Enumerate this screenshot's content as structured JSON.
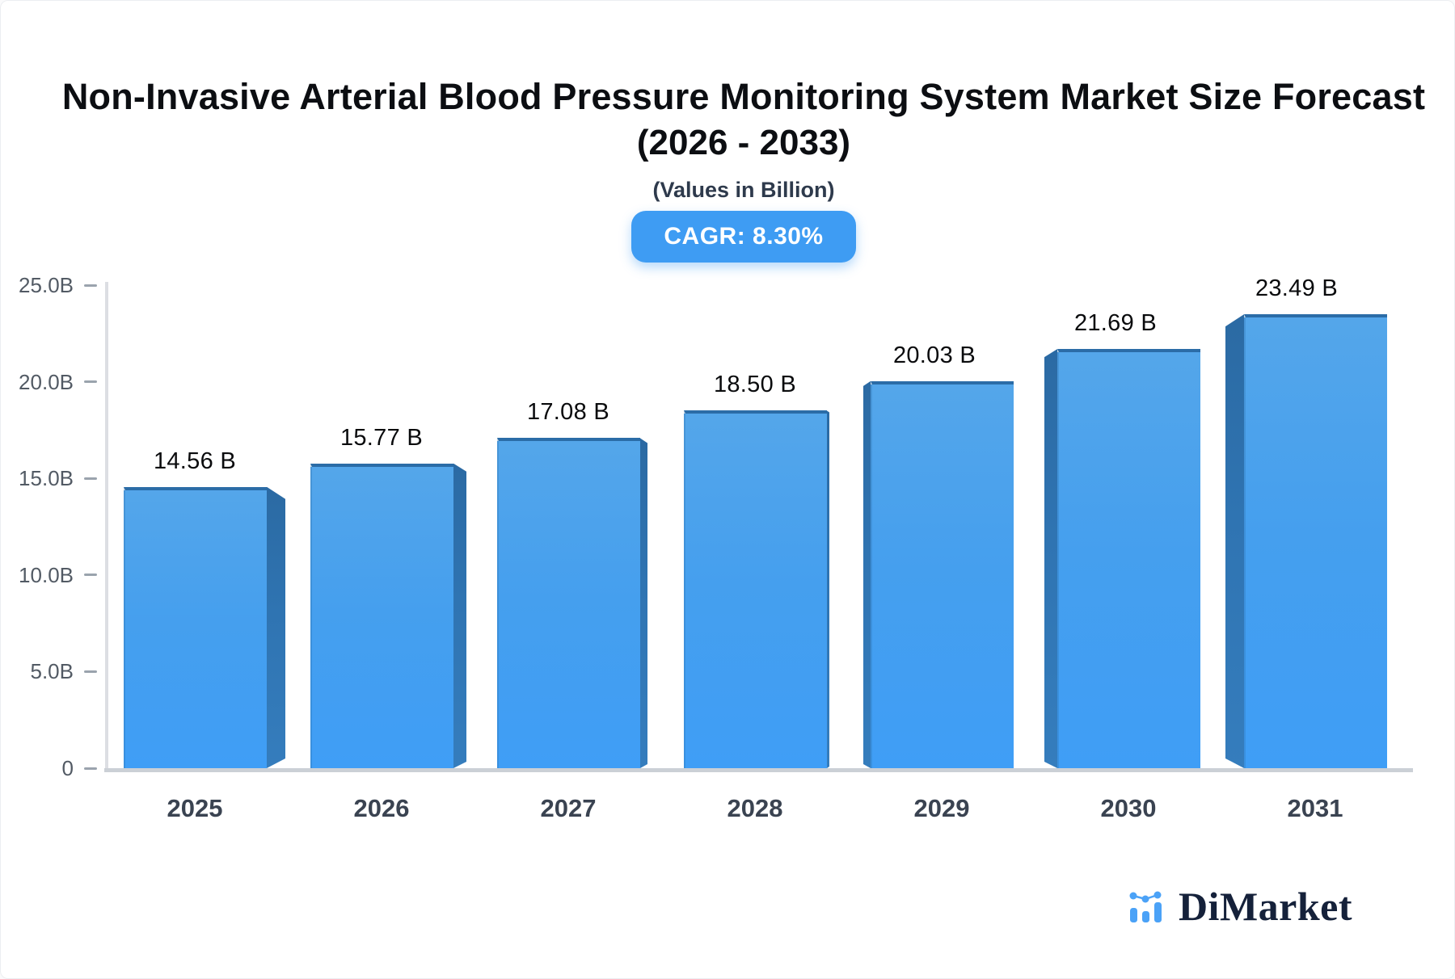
{
  "header": {
    "title_line1": "Non-Invasive Arterial Blood Pressure Monitoring System Market Size Forecast",
    "title_line2": "(2026 - 2033)",
    "subtitle": "(Values in Billion)",
    "cagr_label": "CAGR: 8.30%"
  },
  "chart_data": {
    "type": "bar",
    "title": "Non-Invasive Arterial Blood Pressure Monitoring System Market Size Forecast (2026 - 2033)",
    "subtitle": "(Values in Billion)",
    "cagr_pct": 8.3,
    "categories": [
      "2025",
      "2026",
      "2027",
      "2028",
      "2029",
      "2030",
      "2031"
    ],
    "values": [
      14.56,
      15.77,
      17.08,
      18.5,
      20.03,
      21.69,
      23.49
    ],
    "value_labels": [
      "14.56 B",
      "15.77 B",
      "17.08 B",
      "18.50 B",
      "20.03 B",
      "21.69 B",
      "23.49 B"
    ],
    "xlabel": "",
    "ylabel": "",
    "ylim": [
      0,
      25
    ],
    "yticks": [
      {
        "value": 25,
        "label": "25.0B"
      },
      {
        "value": 20,
        "label": "20.0B"
      },
      {
        "value": 15,
        "label": "15.0B"
      },
      {
        "value": 10,
        "label": "10.0B"
      },
      {
        "value": 5,
        "label": "5.0B"
      },
      {
        "value": 0,
        "label": "0"
      }
    ],
    "grid": false,
    "legend": "none",
    "style_3d": true,
    "colors": {
      "bar_top": "#54a6ea",
      "bar_bottom": "#3f9ef6",
      "bar_side": "#2f74b2",
      "bar_top_edge": "#2b6ca7",
      "badge_background": "#3e9cf3",
      "axis_line": "#dcdee3",
      "baseline": "#cbd0d6",
      "tick": "#9aa3ad"
    }
  },
  "footer": {
    "brand": "DiMarket"
  }
}
